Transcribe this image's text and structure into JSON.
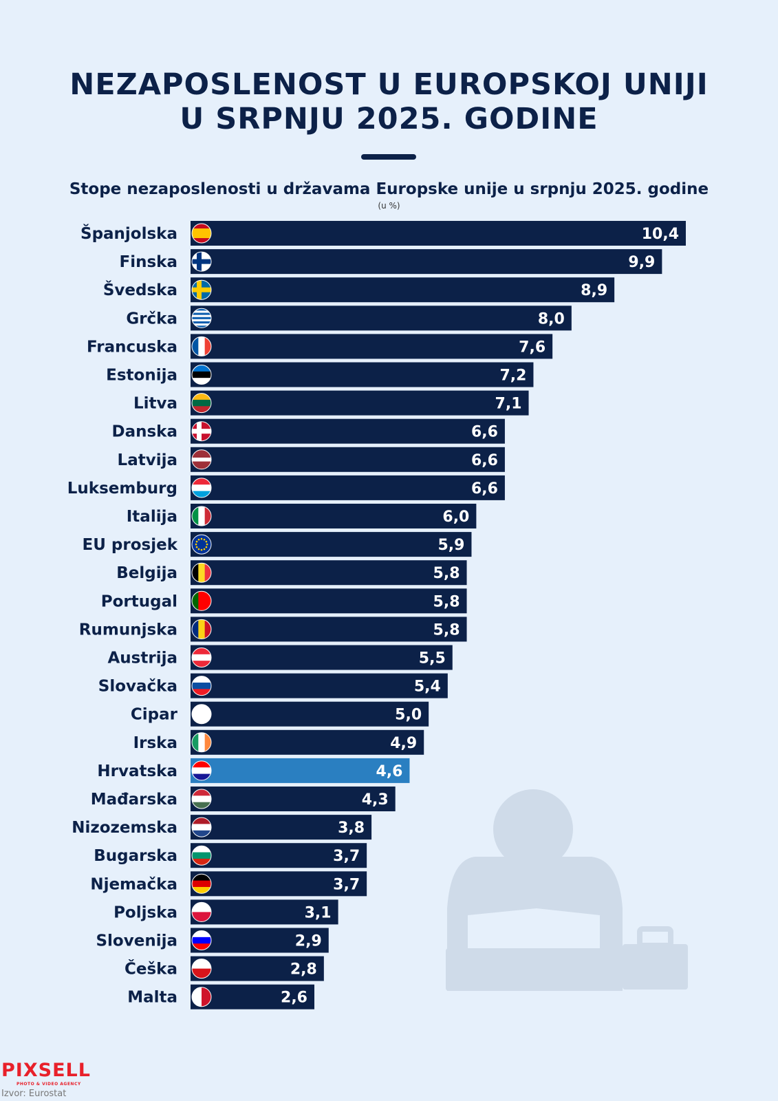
{
  "header": {
    "title_line1": "NEZAPOSLENOST U EUROPSKOJ UNIJI",
    "title_line2": "U SRPNJU 2025. GODINE",
    "subtitle": "Stope nezaposlenosti u državama Europske unije u srpnju 2025. godine",
    "unit": "(u %)"
  },
  "footer": {
    "logo": "PIXSELL",
    "logo_tagline": "PHOTO & VIDEO AGENCY",
    "source": "Izvor: Eurostat"
  },
  "colors": {
    "bar": "#0c2148",
    "highlight_bar": "#2a7fc1",
    "background": "#e6f0fb",
    "silhouette": "#cfdbe9"
  },
  "chart_data": {
    "type": "bar",
    "orientation": "horizontal",
    "title": "Stope nezaposlenosti u državama Europske unije u srpnju 2025. godine",
    "unit": "(u %)",
    "xlim": [
      0,
      10.4
    ],
    "grid": false,
    "highlight": "Hrvatska",
    "categories": [
      "Španjolska",
      "Finska",
      "Švedska",
      "Grčka",
      "Francuska",
      "Estonija",
      "Litva",
      "Danska",
      "Latvija",
      "Luksemburg",
      "Italija",
      "EU prosjek",
      "Belgija",
      "Portugal",
      "Rumunjska",
      "Austrija",
      "Slovačka",
      "Cipar",
      "Irska",
      "Hrvatska",
      "Mađarska",
      "Nizozemska",
      "Bugarska",
      "Njemačka",
      "Poljska",
      "Slovenija",
      "Češka",
      "Malta"
    ],
    "values": [
      10.4,
      9.9,
      8.9,
      8.0,
      7.6,
      7.2,
      7.1,
      6.6,
      6.6,
      6.6,
      6.0,
      5.9,
      5.8,
      5.8,
      5.8,
      5.5,
      5.4,
      5.0,
      4.9,
      4.6,
      4.3,
      3.8,
      3.7,
      3.7,
      3.1,
      2.9,
      2.8,
      2.6
    ],
    "value_labels": [
      "10,4",
      "9,9",
      "8,9",
      "8,0",
      "7,6",
      "7,2",
      "7,1",
      "6,6",
      "6,6",
      "6,6",
      "6,0",
      "5,9",
      "5,8",
      "5,8",
      "5,8",
      "5,5",
      "5,4",
      "5,0",
      "4,9",
      "4,6",
      "4,3",
      "3,8",
      "3,7",
      "3,7",
      "3,1",
      "2,9",
      "2,8",
      "2,6"
    ],
    "flags": [
      {
        "type": "h",
        "colors": [
          "#c60b1e",
          "#ffc400",
          "#ffc400",
          "#c60b1e"
        ]
      },
      {
        "type": "nordic",
        "colors": [
          "#ffffff",
          "#003580"
        ]
      },
      {
        "type": "nordic",
        "colors": [
          "#006aa7",
          "#fecc00"
        ]
      },
      {
        "type": "h",
        "colors": [
          "#0d5eaf",
          "#ffffff",
          "#0d5eaf",
          "#ffffff",
          "#0d5eaf",
          "#ffffff",
          "#0d5eaf",
          "#ffffff",
          "#0d5eaf"
        ]
      },
      {
        "type": "v",
        "colors": [
          "#0055a4",
          "#ffffff",
          "#ef4135"
        ]
      },
      {
        "type": "h",
        "colors": [
          "#0072ce",
          "#000000",
          "#ffffff"
        ]
      },
      {
        "type": "h",
        "colors": [
          "#fdb913",
          "#006a44",
          "#c1272d"
        ]
      },
      {
        "type": "nordic",
        "colors": [
          "#c8102e",
          "#ffffff"
        ]
      },
      {
        "type": "h",
        "colors": [
          "#9e3039",
          "#9e3039",
          "#ffffff",
          "#9e3039",
          "#9e3039"
        ]
      },
      {
        "type": "h",
        "colors": [
          "#ed2939",
          "#ffffff",
          "#00a1de"
        ]
      },
      {
        "type": "v",
        "colors": [
          "#009246",
          "#ffffff",
          "#ce2b37"
        ]
      },
      {
        "type": "eu",
        "colors": [
          "#003399",
          "#ffcc00"
        ]
      },
      {
        "type": "v",
        "colors": [
          "#000000",
          "#fdda24",
          "#ef3340"
        ]
      },
      {
        "type": "v",
        "colors": [
          "#006600",
          "#ff0000",
          "#ff0000"
        ]
      },
      {
        "type": "v",
        "colors": [
          "#002b7f",
          "#fcd116",
          "#ce1126"
        ]
      },
      {
        "type": "h",
        "colors": [
          "#ed2939",
          "#ffffff",
          "#ed2939"
        ]
      },
      {
        "type": "h",
        "colors": [
          "#ffffff",
          "#0b4ea2",
          "#ee1c25"
        ]
      },
      {
        "type": "h",
        "colors": [
          "#ffffff"
        ]
      },
      {
        "type": "v",
        "colors": [
          "#169b62",
          "#ffffff",
          "#ff883e"
        ]
      },
      {
        "type": "h",
        "colors": [
          "#ff0000",
          "#ffffff",
          "#171796"
        ]
      },
      {
        "type": "h",
        "colors": [
          "#ce2939",
          "#ffffff",
          "#477050"
        ]
      },
      {
        "type": "h",
        "colors": [
          "#ae1c28",
          "#ffffff",
          "#21468b"
        ]
      },
      {
        "type": "h",
        "colors": [
          "#ffffff",
          "#00966e",
          "#d62612"
        ]
      },
      {
        "type": "h",
        "colors": [
          "#000000",
          "#dd0000",
          "#ffce00"
        ]
      },
      {
        "type": "h",
        "colors": [
          "#ffffff",
          "#dc143c"
        ]
      },
      {
        "type": "h",
        "colors": [
          "#ffffff",
          "#0000ff",
          "#ff0000"
        ]
      },
      {
        "type": "h",
        "colors": [
          "#ffffff",
          "#d7141a"
        ]
      },
      {
        "type": "v",
        "colors": [
          "#ffffff",
          "#cf142b"
        ]
      }
    ]
  }
}
